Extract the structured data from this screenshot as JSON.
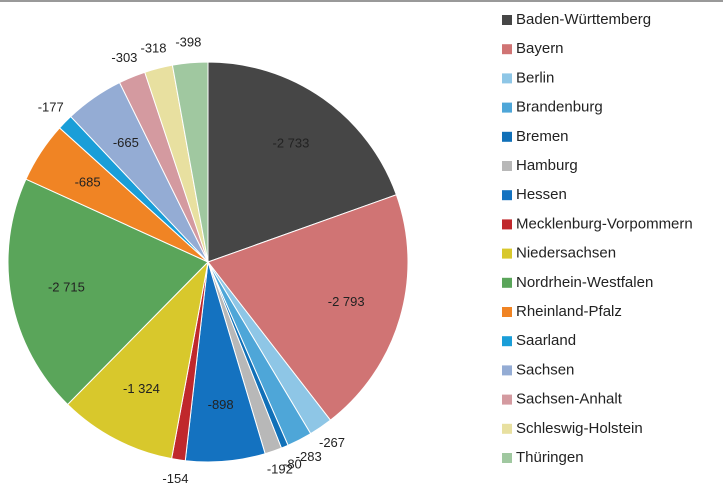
{
  "chart_data": {
    "type": "pie",
    "categories": [
      "Baden-Württemberg",
      "Bayern",
      "Berlin",
      "Brandenburg",
      "Bremen",
      "Hamburg",
      "Hessen",
      "Mecklenburg-Vorpommern",
      "Niedersachsen",
      "Nordrhein-Westfalen",
      "Rheinland-Pfalz",
      "Saarland",
      "Sachsen",
      "Sachsen-Anhalt",
      "Schleswig-Holstein",
      "Thüringen"
    ],
    "values": [
      -2733,
      -2793,
      -267,
      -283,
      -80,
      -192,
      -898,
      -154,
      -1324,
      -2715,
      -685,
      -177,
      -665,
      -303,
      -318,
      -398
    ],
    "value_labels": [
      "-2 733",
      "-2 793",
      "-267",
      "-283",
      "-80",
      "-192",
      "-898",
      "-154",
      "-1 324",
      "-2 715",
      "-685",
      "-177",
      "-665",
      "-303",
      "-318",
      "-398"
    ],
    "colors": [
      "#464646",
      "#d07474",
      "#8ec6e6",
      "#4ea6d8",
      "#1070b8",
      "#b8b8b8",
      "#1472c0",
      "#c0282c",
      "#d8c82c",
      "#5aa55a",
      "#f08424",
      "#1a9ed8",
      "#94acd4",
      "#d49aa0",
      "#e8e0a0",
      "#a0c8a0"
    ]
  }
}
